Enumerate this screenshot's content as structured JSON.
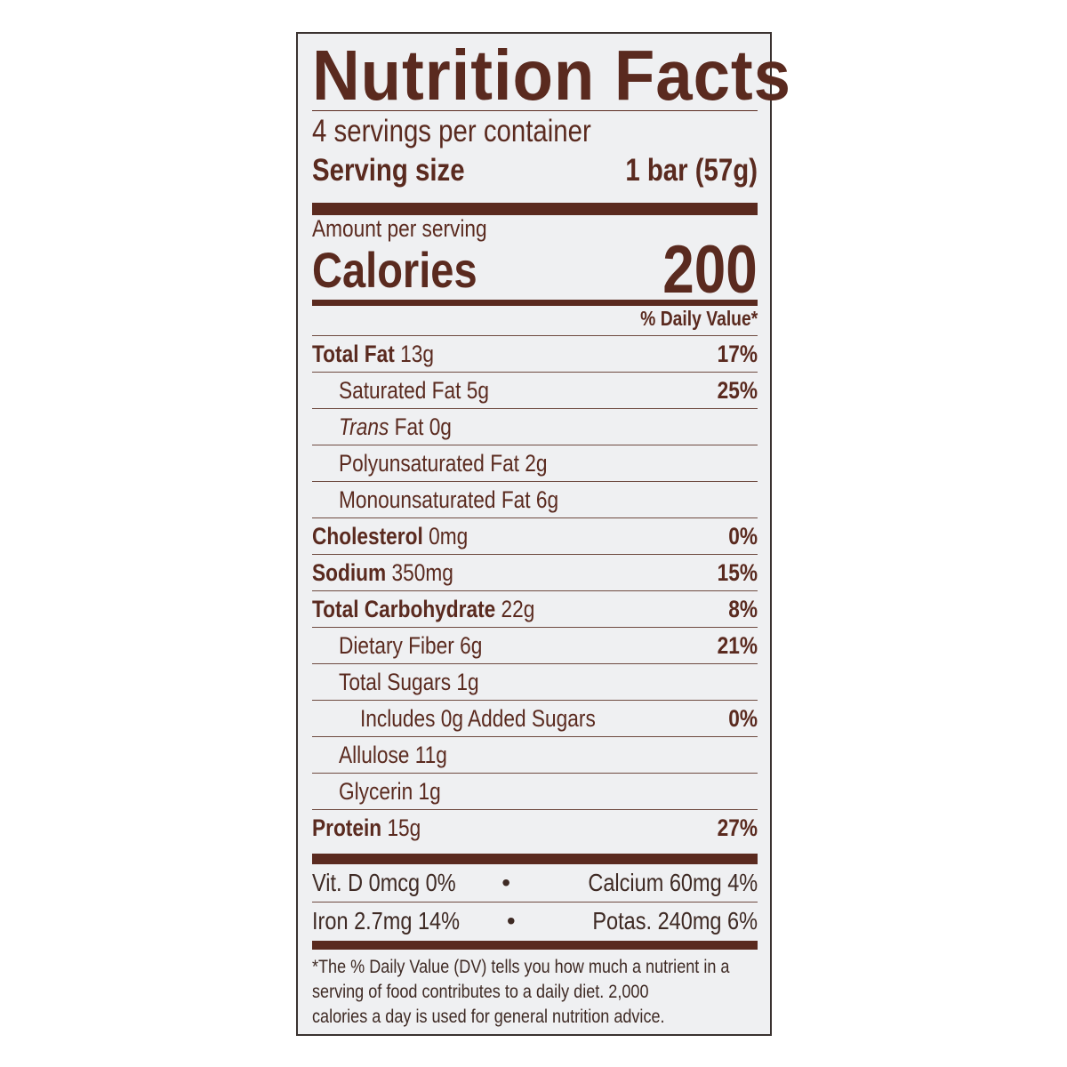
{
  "title": "Nutrition Facts",
  "servings_per_container": "4 servings per container",
  "serving_size_label": "Serving size",
  "serving_size_value": "1 bar (57g)",
  "amount_per_serving": "Amount per serving",
  "calories_label": "Calories",
  "calories_value": "200",
  "daily_value_header": "% Daily Value*",
  "nutrients": [
    {
      "name": "Total Fat",
      "amount": "13g",
      "dv": "17%",
      "bold": true,
      "level": 0
    },
    {
      "name": "Saturated Fat",
      "amount": "5g",
      "dv": "25%",
      "bold": false,
      "level": 1
    },
    {
      "name": "Fat",
      "italic_prefix": "Trans",
      "amount": "0g",
      "dv": "",
      "bold": false,
      "level": 1
    },
    {
      "name": "Polyunsaturated Fat",
      "amount": "2g",
      "dv": "",
      "bold": false,
      "level": 1
    },
    {
      "name": "Monounsaturated Fat",
      "amount": "6g",
      "dv": "",
      "bold": false,
      "level": 1
    },
    {
      "name": "Cholesterol",
      "amount": "0mg",
      "dv": "0%",
      "bold": true,
      "level": 0
    },
    {
      "name": "Sodium",
      "amount": "350mg",
      "dv": "15%",
      "bold": true,
      "level": 0
    },
    {
      "name": "Total Carbohydrate",
      "amount": "22g",
      "dv": "8%",
      "bold": true,
      "level": 0
    },
    {
      "name": "Dietary Fiber",
      "amount": "6g",
      "dv": "21%",
      "bold": false,
      "level": 1
    },
    {
      "name": "Total Sugars",
      "amount": "1g",
      "dv": "",
      "bold": false,
      "level": 1
    },
    {
      "name": "Includes 0g Added Sugars",
      "amount": "",
      "dv": "0%",
      "bold": false,
      "level": 2
    },
    {
      "name": "Allulose",
      "amount": "11g",
      "dv": "",
      "bold": false,
      "level": 1
    },
    {
      "name": "Glycerin",
      "amount": "1g",
      "dv": "",
      "bold": false,
      "level": 1
    },
    {
      "name": "Protein",
      "amount": "15g",
      "dv": "27%",
      "bold": true,
      "level": 0
    }
  ],
  "vitamins": [
    {
      "left": "Vit. D 0mcg 0%",
      "right": "Calcium 60mg 4%"
    },
    {
      "left": "Iron 2.7mg 14%",
      "right": "Potas. 240mg 6%"
    }
  ],
  "separator": "•",
  "footnote": [
    "*The % Daily Value (DV) tells you how much a nutrient in a",
    "serving of food contributes to a daily diet. 2,000",
    "calories a day is used for general nutrition advice."
  ],
  "colors": {
    "text": "#5a2a1f",
    "background": "#eff0f2",
    "border": "#3a3230"
  }
}
